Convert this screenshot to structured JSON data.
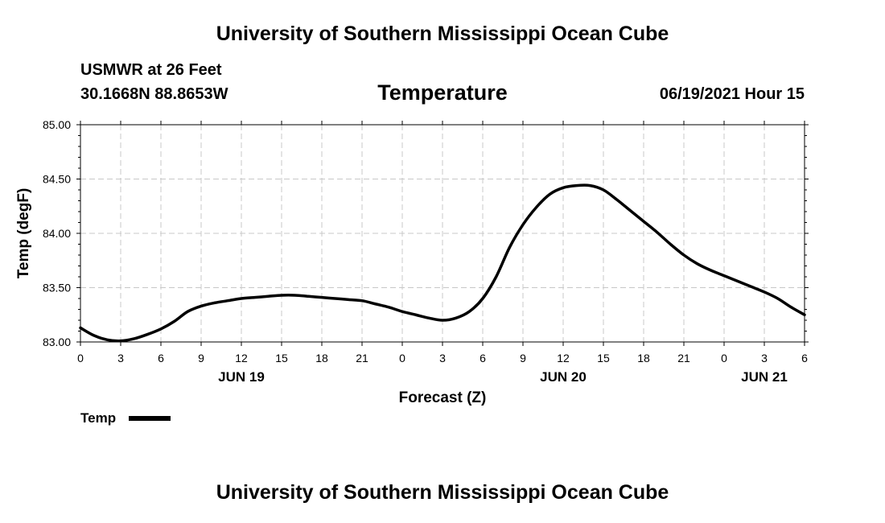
{
  "header": {
    "title_top": "University of Southern Mississippi Ocean Cube",
    "title_bottom": "University of Southern Mississippi Ocean Cube",
    "station_name": "USMWR at 26 Feet",
    "station_coords": "30.1668N  88.8653W",
    "chart_title": "Temperature",
    "timestamp": "06/19/2021 Hour 15"
  },
  "chart_data": {
    "type": "line",
    "title": "Temperature",
    "xlabel": "Forecast (Z)",
    "ylabel": "Temp (degF)",
    "ylim": [
      83.0,
      85.0
    ],
    "y_ticks": [
      "83.00",
      "83.50",
      "84.00",
      "84.50",
      "85.00"
    ],
    "y_tick_values": [
      83.0,
      83.5,
      84.0,
      84.5,
      85.0
    ],
    "xlim": [
      0,
      54
    ],
    "x_ticks": [
      "0",
      "3",
      "6",
      "9",
      "12",
      "15",
      "18",
      "21",
      "0",
      "3",
      "6",
      "9",
      "12",
      "15",
      "18",
      "21",
      "0",
      "3",
      "6"
    ],
    "x_tick_values": [
      0,
      3,
      6,
      9,
      12,
      15,
      18,
      21,
      24,
      27,
      30,
      33,
      36,
      39,
      42,
      45,
      48,
      51,
      54
    ],
    "date_labels": [
      {
        "label": "JUN 19",
        "hour": 12
      },
      {
        "label": "JUN 20",
        "hour": 36
      },
      {
        "label": "JUN 21",
        "hour": 51
      }
    ],
    "grid": true,
    "legend_position": "bottom-left",
    "series": [
      {
        "name": "Temp",
        "color": "#000000",
        "x": [
          0,
          1,
          2,
          3,
          4,
          5,
          6,
          7,
          8,
          9,
          10,
          11,
          12,
          13,
          14,
          15,
          16,
          17,
          18,
          19,
          20,
          21,
          22,
          23,
          24,
          25,
          26,
          27,
          28,
          29,
          30,
          31,
          32,
          33,
          34,
          35,
          36,
          37,
          38,
          39,
          40,
          41,
          42,
          43,
          44,
          45,
          46,
          47,
          48,
          49,
          50,
          51,
          52,
          53,
          54
        ],
        "values": [
          83.13,
          83.06,
          83.02,
          83.01,
          83.03,
          83.07,
          83.12,
          83.19,
          83.28,
          83.33,
          83.36,
          83.38,
          83.4,
          83.41,
          83.42,
          83.43,
          83.43,
          83.42,
          83.41,
          83.4,
          83.39,
          83.38,
          83.35,
          83.32,
          83.28,
          83.25,
          83.22,
          83.2,
          83.22,
          83.28,
          83.4,
          83.6,
          83.87,
          84.08,
          84.24,
          84.36,
          84.42,
          84.44,
          84.44,
          84.4,
          84.31,
          84.21,
          84.11,
          84.01,
          83.9,
          83.8,
          83.72,
          83.66,
          83.61,
          83.56,
          83.51,
          83.46,
          83.4,
          83.32,
          83.25
        ]
      }
    ]
  }
}
